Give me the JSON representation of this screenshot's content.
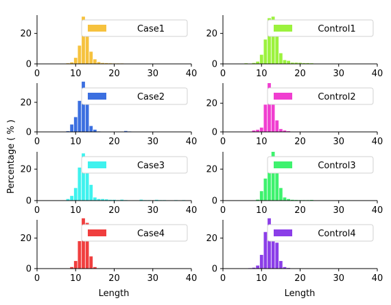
{
  "figure": {
    "ylabel": "Percentage ( % )",
    "xlabel_left": "Length",
    "xlabel_right": "Length"
  },
  "chart_data": [
    {
      "type": "bar",
      "name": "Case1",
      "color": "#f6c23e",
      "xlim": [
        0,
        40
      ],
      "ylim": [
        0,
        32
      ],
      "xticks": [
        "0",
        "10",
        "20",
        "30",
        "40"
      ],
      "yticks": [
        "0",
        "20"
      ],
      "x": [
        8,
        9,
        10,
        11,
        12,
        13,
        14,
        15,
        16,
        17,
        18,
        19,
        20,
        21,
        22,
        23,
        24,
        25,
        26,
        27,
        28
      ],
      "values": [
        0.4,
        1,
        4,
        12,
        31,
        21,
        8,
        3,
        1.2,
        0.6,
        0.5,
        0.4,
        0.3,
        0.3,
        0.3,
        0.2,
        0.2,
        0.2,
        0.2,
        0.2,
        0.1
      ]
    },
    {
      "type": "bar",
      "name": "Case2",
      "color": "#3b6fe0",
      "xlim": [
        0,
        40
      ],
      "ylim": [
        0,
        33
      ],
      "xticks": [
        "0",
        "10",
        "20",
        "30",
        "40"
      ],
      "yticks": [
        "0",
        "20"
      ],
      "x": [
        8,
        9,
        10,
        11,
        12,
        13,
        14,
        15,
        16,
        17,
        18,
        19,
        20,
        21,
        22,
        23,
        24
      ],
      "values": [
        0.5,
        5,
        10,
        21,
        34,
        20,
        4,
        1.5,
        0.3,
        0.2,
        0.2,
        0.1,
        0.2,
        0.1,
        0.2,
        0.6,
        0.3
      ]
    },
    {
      "type": "bar",
      "name": "Case3",
      "color": "#3ff2ee",
      "xlim": [
        0,
        40
      ],
      "ylim": [
        0,
        31
      ],
      "xticks": [
        "0",
        "10",
        "20",
        "30",
        "40"
      ],
      "yticks": [
        "0",
        "20"
      ],
      "x": [
        8,
        9,
        10,
        11,
        12,
        13,
        14,
        15,
        16,
        17,
        18,
        19,
        20,
        21,
        22,
        23,
        24,
        25,
        26,
        27,
        28,
        29,
        30,
        31,
        32,
        33,
        34,
        35,
        36,
        37,
        38
      ],
      "values": [
        1,
        3,
        8,
        21,
        30,
        24,
        10,
        2,
        1,
        1,
        0.8,
        0.5,
        0.5,
        0.3,
        0.6,
        0.3,
        0.2,
        0.2,
        0.2,
        0.6,
        0.3,
        0.3,
        0.2,
        0.5,
        0.3,
        0.3,
        0.2,
        0.2,
        0.3,
        0.2,
        0.3
      ]
    },
    {
      "type": "bar",
      "name": "Case4",
      "color": "#f03e3e",
      "xlim": [
        0,
        40
      ],
      "ylim": [
        0,
        32
      ],
      "xticks": [
        "0",
        "10",
        "20",
        "30",
        "40"
      ],
      "yticks": [
        "0",
        "20"
      ],
      "x": [
        9,
        10,
        11,
        12,
        13,
        14,
        15
      ],
      "values": [
        1,
        5,
        18,
        33,
        30,
        8,
        1
      ]
    },
    {
      "type": "bar",
      "name": "Control1",
      "color": "#9cf23e",
      "xlim": [
        0,
        40
      ],
      "ylim": [
        0,
        32
      ],
      "xticks": [
        "0",
        "10",
        "20",
        "30",
        "40"
      ],
      "yticks": [
        "0",
        "20"
      ],
      "x": [
        6,
        8,
        9,
        10,
        11,
        12,
        13,
        14,
        15,
        16,
        17,
        18,
        19,
        20,
        21,
        22,
        23
      ],
      "values": [
        0.4,
        0.6,
        1.5,
        6,
        16,
        30,
        31,
        21,
        7,
        2.5,
        2,
        0.8,
        0.8,
        0.7,
        0.5,
        0.5,
        0.4
      ]
    },
    {
      "type": "bar",
      "name": "Control2",
      "color": "#f03ed0",
      "xlim": [
        0,
        40
      ],
      "ylim": [
        0,
        34
      ],
      "xticks": [
        "0",
        "10",
        "20",
        "30",
        "40"
      ],
      "yticks": [
        "0",
        "20"
      ],
      "x": [
        8,
        9,
        10,
        11,
        12,
        13,
        14,
        15,
        16,
        17
      ],
      "values": [
        1,
        1.5,
        3,
        19,
        34,
        26,
        8,
        2,
        1,
        0.5
      ]
    },
    {
      "type": "bar",
      "name": "Control3",
      "color": "#3ef26e",
      "xlim": [
        0,
        40
      ],
      "ylim": [
        0,
        31
      ],
      "xticks": [
        "0",
        "10",
        "20",
        "30",
        "40"
      ],
      "yticks": [
        "0",
        "20"
      ],
      "x": [
        8,
        9,
        10,
        11,
        12,
        13,
        14,
        15,
        16,
        17,
        18,
        19,
        20,
        21,
        22,
        23
      ],
      "values": [
        0.2,
        0.6,
        6,
        14,
        22,
        31,
        20,
        8,
        2,
        1,
        0.5,
        0.4,
        0.3,
        0.3,
        0.3,
        0.4
      ]
    },
    {
      "type": "bar",
      "name": "Control4",
      "color": "#8b3ee8",
      "xlim": [
        0,
        40
      ],
      "ylim": [
        0,
        32
      ],
      "xticks": [
        "0",
        "10",
        "20",
        "30",
        "40"
      ],
      "yticks": [
        "0",
        "20"
      ],
      "x": [
        7,
        8,
        9,
        10,
        11,
        12,
        13,
        14,
        15,
        16,
        17
      ],
      "values": [
        0.3,
        0.6,
        2,
        9,
        24,
        33,
        28,
        17,
        5,
        1,
        0.4
      ]
    }
  ]
}
